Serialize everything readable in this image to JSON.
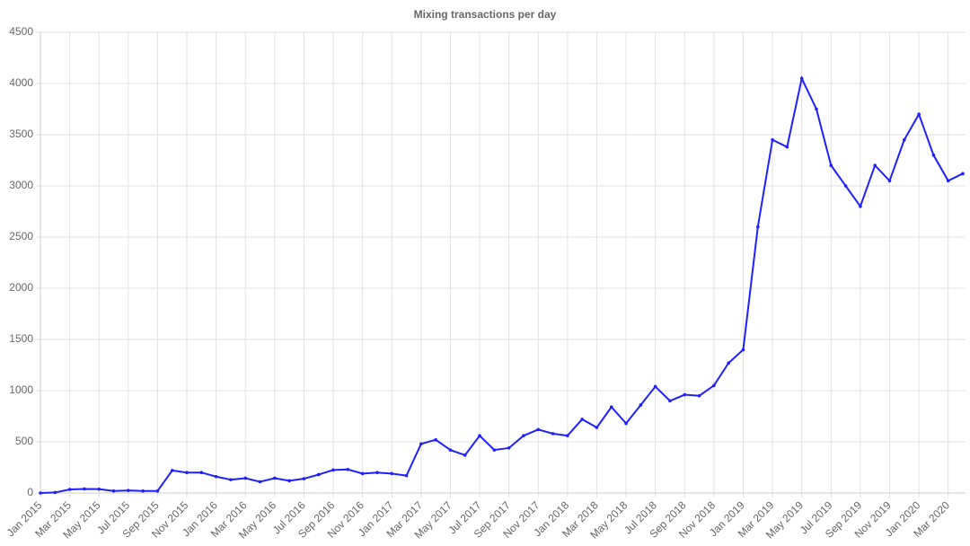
{
  "chart_data": {
    "type": "line",
    "title": "Mixing transactions per day",
    "categories": [
      "Jan 2015",
      null,
      "Mar 2015",
      null,
      "May 2015",
      null,
      "Jul 2015",
      null,
      "Sep 2015",
      null,
      "Nov 2015",
      null,
      "Jan 2016",
      null,
      "Mar 2016",
      null,
      "May 2016",
      null,
      "Jul 2016",
      null,
      "Sep 2016",
      null,
      "Nov 2016",
      null,
      "Jan 2017",
      null,
      "Mar 2017",
      null,
      "May 2017",
      null,
      "Jul 2017",
      null,
      "Sep 2017",
      null,
      "Nov 2017",
      null,
      "Jan 2018",
      null,
      "Mar 2018",
      null,
      "May 2018",
      null,
      "Jul 2018",
      null,
      "Sep 2018",
      null,
      "Nov 2018",
      null,
      "Jan 2019",
      null,
      "Mar 2019",
      null,
      "May 2019",
      null,
      "Jul 2019",
      null,
      "Sep 2019",
      null,
      "Nov 2019",
      null,
      "Jan 2020",
      null,
      "Mar 2020",
      null
    ],
    "values": [
      0,
      5,
      35,
      40,
      38,
      20,
      25,
      20,
      20,
      220,
      200,
      200,
      160,
      130,
      145,
      110,
      145,
      120,
      140,
      180,
      225,
      230,
      190,
      200,
      190,
      170,
      480,
      520,
      420,
      370,
      560,
      420,
      440,
      560,
      620,
      580,
      560,
      720,
      640,
      840,
      680,
      860,
      1040,
      900,
      960,
      950,
      1050,
      1270,
      1400,
      2600,
      3450,
      3380,
      4050,
      3750,
      3200,
      3000,
      2800,
      3200,
      3050,
      3450,
      3700,
      3300,
      3050,
      3120
    ],
    "color": "#1f1fff",
    "ylim": [
      0,
      4500
    ],
    "yticks": [
      0,
      500,
      1000,
      1500,
      2000,
      2500,
      3000,
      3500,
      4000,
      4500
    ],
    "grid": true
  }
}
